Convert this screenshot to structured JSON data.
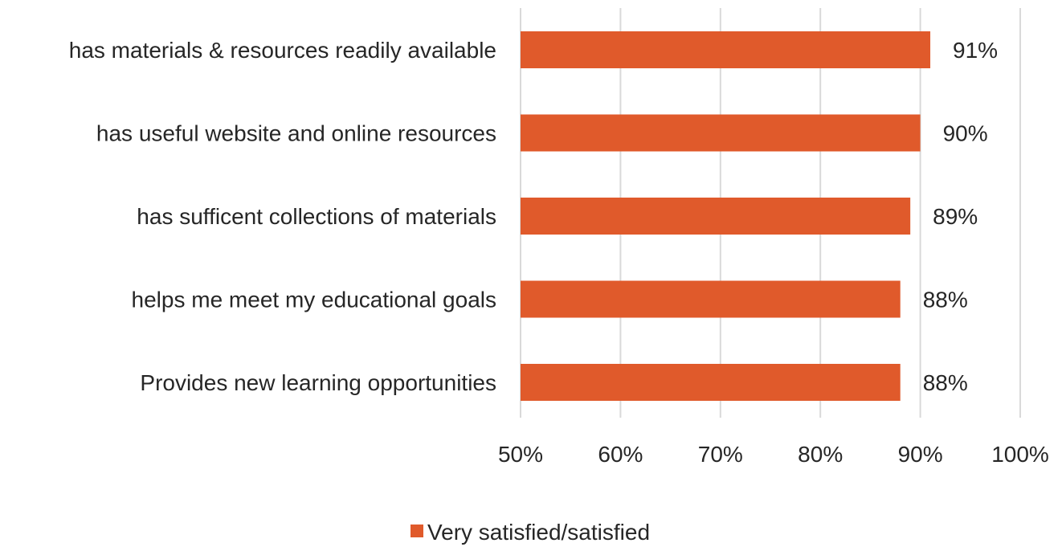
{
  "chart_data": {
    "type": "bar",
    "orientation": "horizontal",
    "categories": [
      "has materials & resources readily available",
      "has useful website and online resources",
      "has sufficent collections of materials",
      "helps me meet my educational goals",
      "Provides new learning opportunities"
    ],
    "series": [
      {
        "name": "Very satisfied/satisfied",
        "values": [
          91,
          90,
          89,
          88,
          88
        ],
        "data_labels": [
          "91%",
          "90%",
          "89%",
          "88%",
          "88%"
        ]
      }
    ],
    "xlim": [
      50,
      100
    ],
    "x_ticks": [
      50,
      60,
      70,
      80,
      90,
      100
    ],
    "x_tick_labels": [
      "50%",
      "60%",
      "70%",
      "80%",
      "90%",
      "100%"
    ],
    "title": "",
    "xlabel": "",
    "ylabel": "",
    "grid": "vertical",
    "legend_position": "bottom",
    "colors": {
      "bar": "#e05a2b",
      "grid": "#d9d9d9",
      "text": "#262626"
    }
  }
}
